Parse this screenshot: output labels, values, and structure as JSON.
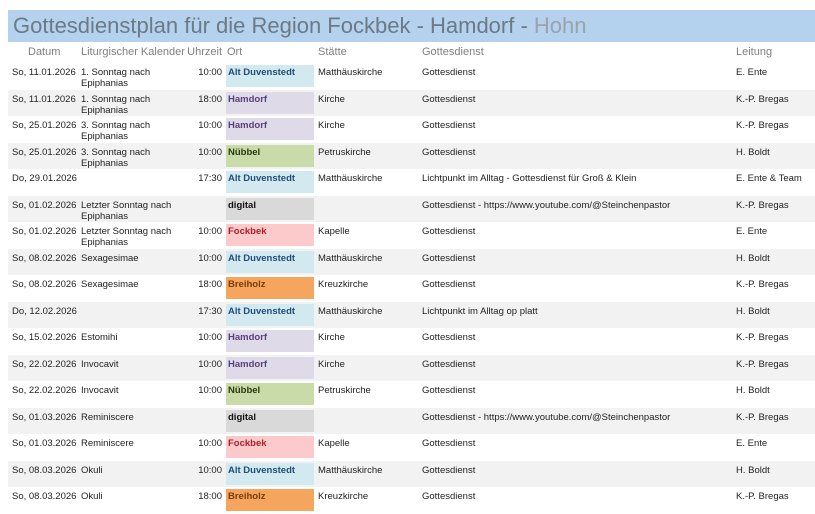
{
  "title": {
    "main": "Gottesdienstplan für die Region Fockbek - Hamdorf - ",
    "sub": "Hohn"
  },
  "headers": {
    "datum": "Datum",
    "kalender": "Liturgischer Kalender",
    "uhrzeit": "Uhrzeit",
    "ort": "Ort",
    "staette": "Stätte",
    "gottesdienst": "Gottesdienst",
    "leitung": "Leitung"
  },
  "ort_colors": {
    "Alt Duvenstedt": {
      "bg": "#d3e9f0",
      "fg": "#1f4e79"
    },
    "Hamdorf": {
      "bg": "#dedae8",
      "fg": "#5b3f7a"
    },
    "Nübbel": {
      "bg": "#c8dba8",
      "fg": "#2a3a10"
    },
    "digital": {
      "bg": "#d9d9d9",
      "fg": "#111111"
    },
    "Fockbek": {
      "bg": "#fccaca",
      "fg": "#b0202a"
    },
    "Breiholz": {
      "bg": "#f5a55d",
      "fg": "#7a3a08"
    }
  },
  "rows": [
    {
      "datum": "So, 11.01.2026",
      "kalender": "1. Sonntag nach Epiphanias",
      "uhrzeit": "10:00",
      "ort": "Alt Duvenstedt",
      "staette": "Matthäuskirche",
      "gottesdienst": "Gottesdienst",
      "leitung": "E. Ente"
    },
    {
      "datum": "So, 11.01.2026",
      "kalender": "1. Sonntag nach Epiphanias",
      "uhrzeit": "18:00",
      "ort": "Hamdorf",
      "staette": "Kirche",
      "gottesdienst": "Gottesdienst",
      "leitung": "K.-P. Bregas"
    },
    {
      "datum": "So, 25.01.2026",
      "kalender": "3. Sonntag nach Epiphanias",
      "uhrzeit": "10:00",
      "ort": "Hamdorf",
      "staette": "Kirche",
      "gottesdienst": "Gottesdienst",
      "leitung": "K.-P. Bregas"
    },
    {
      "datum": "So, 25.01.2026",
      "kalender": "3. Sonntag nach Epiphanias",
      "uhrzeit": "10:00",
      "ort": "Nübbel",
      "staette": "Petruskirche",
      "gottesdienst": "Gottesdienst",
      "leitung": "H. Boldt"
    },
    {
      "datum": "Do, 29.01.2026",
      "kalender": "",
      "uhrzeit": "17:30",
      "ort": "Alt Duvenstedt",
      "staette": "Matthäuskirche",
      "gottesdienst": "Lichtpunkt im Alltag - Gottesdienst für Groß & Klein",
      "leitung": "E. Ente & Team"
    },
    {
      "datum": "So, 01.02.2026",
      "kalender": "Letzter Sonntag nach Epiphanias",
      "uhrzeit": "",
      "ort": "digital",
      "staette": "",
      "gottesdienst": "Gottesdienst - https://www.youtube.com/@Steinchenpastor",
      "leitung": "K.-P. Bregas"
    },
    {
      "datum": "So, 01.02.2026",
      "kalender": "Letzter Sonntag nach Epiphanias",
      "uhrzeit": "10:00",
      "ort": "Fockbek",
      "staette": "Kapelle",
      "gottesdienst": "Gottesdienst",
      "leitung": "E. Ente"
    },
    {
      "datum": "So, 08.02.2026",
      "kalender": "Sexagesimae",
      "uhrzeit": "10:00",
      "ort": "Alt Duvenstedt",
      "staette": "Matthäuskirche",
      "gottesdienst": "Gottesdienst",
      "leitung": "H. Boldt"
    },
    {
      "datum": "So, 08.02.2026",
      "kalender": "Sexagesimae",
      "uhrzeit": "18:00",
      "ort": "Breiholz",
      "staette": "Kreuzkirche",
      "gottesdienst": "Gottesdienst",
      "leitung": "K.-P. Bregas"
    },
    {
      "datum": "Do, 12.02.2026",
      "kalender": "",
      "uhrzeit": "17:30",
      "ort": "Alt Duvenstedt",
      "staette": "Matthäuskirche",
      "gottesdienst": "Lichtpunkt im Alltag op platt",
      "leitung": "H. Boldt"
    },
    {
      "datum": "So, 15.02.2026",
      "kalender": "Estomihi",
      "uhrzeit": "10:00",
      "ort": "Hamdorf",
      "staette": "Kirche",
      "gottesdienst": "Gottesdienst",
      "leitung": "K.-P. Bregas"
    },
    {
      "datum": "So, 22.02.2026",
      "kalender": "Invocavit",
      "uhrzeit": "10:00",
      "ort": "Hamdorf",
      "staette": "Kirche",
      "gottesdienst": "Gottesdienst",
      "leitung": "K.-P. Bregas"
    },
    {
      "datum": "So, 22.02.2026",
      "kalender": "Invocavit",
      "uhrzeit": "10:00",
      "ort": "Nübbel",
      "staette": "Petruskirche",
      "gottesdienst": "Gottesdienst",
      "leitung": "H. Boldt"
    },
    {
      "datum": "So, 01.03.2026",
      "kalender": "Reminiscere",
      "uhrzeit": "",
      "ort": "digital",
      "staette": "",
      "gottesdienst": "Gottesdienst - https://www.youtube.com/@Steinchenpastor",
      "leitung": "K.-P. Bregas"
    },
    {
      "datum": "So, 01.03.2026",
      "kalender": "Reminiscere",
      "uhrzeit": "10:00",
      "ort": "Fockbek",
      "staette": "Kapelle",
      "gottesdienst": "Gottesdienst",
      "leitung": "E. Ente"
    },
    {
      "datum": "So, 08.03.2026",
      "kalender": "Okuli",
      "uhrzeit": "10:00",
      "ort": "Alt Duvenstedt",
      "staette": "Matthäuskirche",
      "gottesdienst": "Gottesdienst",
      "leitung": "H. Boldt"
    },
    {
      "datum": "So, 08.03.2026",
      "kalender": "Okuli",
      "uhrzeit": "18:00",
      "ort": "Breiholz",
      "staette": "Kreuzkirche",
      "gottesdienst": "Gottesdienst",
      "leitung": "K.-P. Bregas"
    }
  ]
}
